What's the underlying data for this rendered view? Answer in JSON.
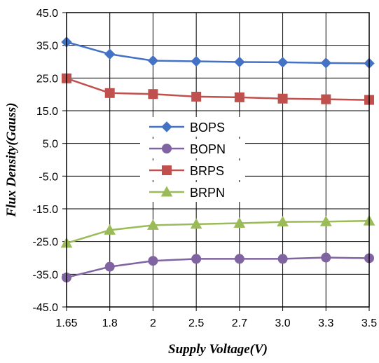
{
  "chart_data": {
    "type": "line",
    "title": "",
    "xlabel": "Supply Voltage(V)",
    "ylabel": "Flux Density(Gauss)",
    "categories": [
      "1.65",
      "1.8",
      "2",
      "2.5",
      "2.7",
      "3.0",
      "3.3",
      "3.5"
    ],
    "yticks": [
      "45.0",
      "35.0",
      "25.0",
      "15.0",
      "5.0",
      "-5.0",
      "-15.0",
      "-25.0",
      "-35.0",
      "-45.0"
    ],
    "ylim": [
      -45,
      45
    ],
    "grid": true,
    "legend_position": "center-left",
    "series": [
      {
        "name": "BOPS",
        "color": "#4472C4",
        "marker": "diamond",
        "values": [
          36.0,
          32.3,
          30.3,
          30.1,
          29.9,
          29.8,
          29.6,
          29.5
        ]
      },
      {
        "name": "BOPN",
        "color": "#8064A2",
        "marker": "circle",
        "values": [
          -36.0,
          -32.7,
          -30.9,
          -30.3,
          -30.3,
          -30.3,
          -29.9,
          -30.1
        ]
      },
      {
        "name": "BRPS",
        "color": "#C0504D",
        "marker": "square",
        "values": [
          24.9,
          20.4,
          20.1,
          19.3,
          19.1,
          18.7,
          18.5,
          18.3
        ]
      },
      {
        "name": "BRPN",
        "color": "#9BBB59",
        "marker": "triangle",
        "values": [
          -25.5,
          -21.5,
          -20.0,
          -19.7,
          -19.4,
          -19.0,
          -18.9,
          -18.7
        ]
      }
    ]
  }
}
